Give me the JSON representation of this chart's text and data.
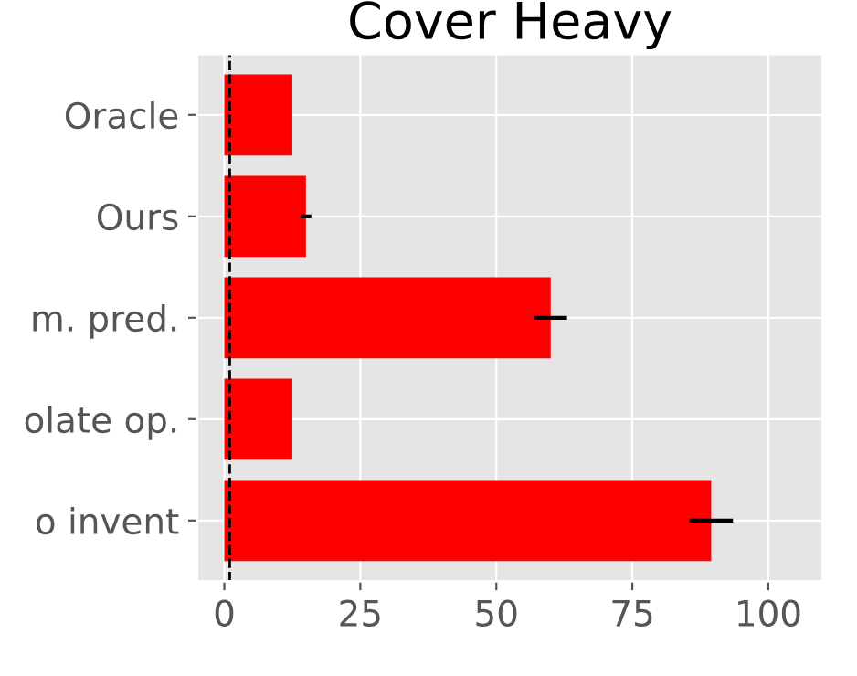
{
  "chart_data": {
    "type": "bar",
    "orientation": "horizontal",
    "title": "Cover Heavy",
    "categories": [
      "Oracle",
      "Ours",
      "m. pred.",
      "olate op.",
      "o invent"
    ],
    "values": [
      12.5,
      15,
      60,
      12.5,
      89.5
    ],
    "errors": [
      null,
      1,
      3,
      null,
      4
    ],
    "color": "#ff0000",
    "xlim": [
      -5,
      110
    ],
    "xticks": [
      0,
      25,
      50,
      75,
      100
    ],
    "ref_lines": [
      {
        "axis": "x",
        "value": 1,
        "color": "#000000",
        "line_style": "dashed"
      }
    ],
    "grid": true
  }
}
